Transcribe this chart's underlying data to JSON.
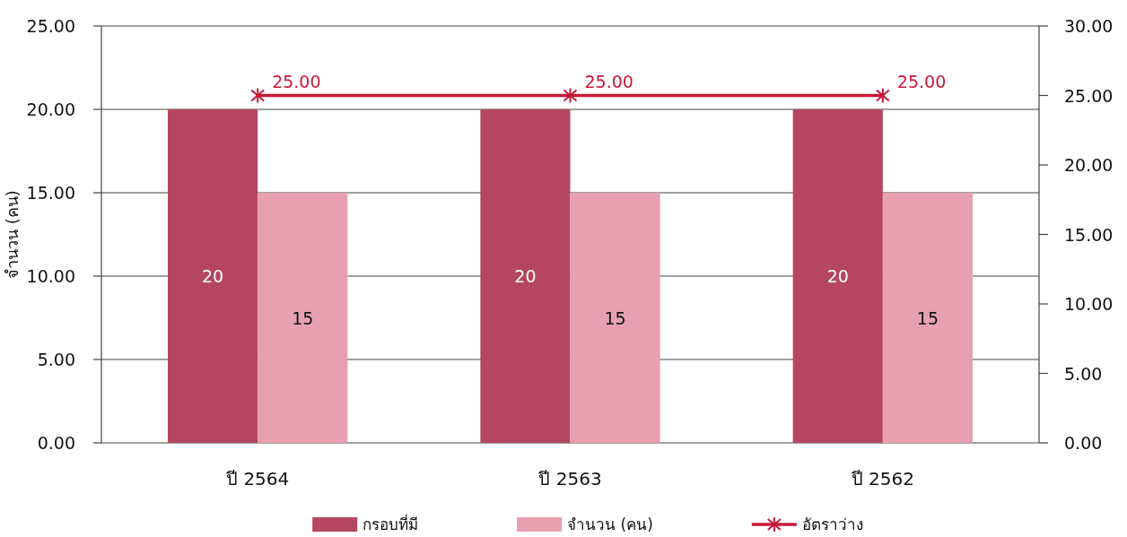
{
  "chart_data": {
    "type": "bar",
    "ylabel": "จำนวน (คน)",
    "categories": [
      "ปี 2564",
      "ปี 2563",
      "ปี 2562"
    ],
    "series": [
      {
        "name": "กรอบที่มี",
        "color": "#b4475f",
        "values": [
          20,
          20,
          20
        ],
        "value_labels": [
          "20",
          "20",
          "20"
        ]
      },
      {
        "name": "จำนวน (คน)",
        "color": "#e6a0b1",
        "values": [
          15,
          15,
          15
        ],
        "value_labels": [
          "15",
          "15",
          "15"
        ]
      },
      {
        "name": "อัตราว่าง",
        "type": "line",
        "axis": "y2",
        "color": "#c8183a",
        "values": [
          25,
          25,
          25
        ],
        "value_labels": [
          "25.00",
          "25.00",
          "25.00"
        ]
      }
    ],
    "ylim": [
      0,
      25
    ],
    "yticks": [
      {
        "value": 0,
        "label": "0.00"
      },
      {
        "value": 5,
        "label": "5.00"
      },
      {
        "value": 10,
        "label": "10.00"
      },
      {
        "value": 15,
        "label": "15.00"
      },
      {
        "value": 20,
        "label": "20.00"
      },
      {
        "value": 25,
        "label": "25.00"
      }
    ],
    "y2lim": [
      0,
      30
    ],
    "y2ticks": [
      {
        "value": 0,
        "label": "0.00"
      },
      {
        "value": 5,
        "label": "5.00"
      },
      {
        "value": 10,
        "label": "10.00"
      },
      {
        "value": 15,
        "label": "15.00"
      },
      {
        "value": 20,
        "label": "20.00"
      },
      {
        "value": 25,
        "label": "25.00"
      },
      {
        "value": 30,
        "label": "30.00"
      }
    ],
    "grid": "y",
    "legend": "bottom",
    "marker": "cross",
    "line_style": "solid"
  }
}
